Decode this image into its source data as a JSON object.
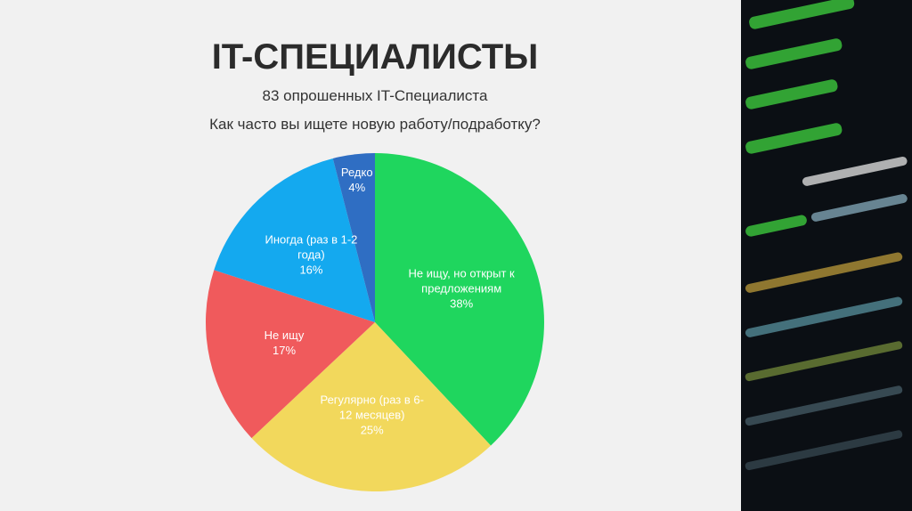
{
  "chart_data": {
    "type": "pie",
    "title": "IT-СПЕЦИАЛИСТЫ",
    "subtitle": "83 опрошенных IT-Специалиста",
    "question": "Как часто вы ищете новую работу/подработку?",
    "categories": [
      "Не ищу, но открыт к предложениям",
      "Регулярно (раз в 6-12 месяцев)",
      "Не ищу",
      "Иногда (раз в 1-2 года)",
      "Редко"
    ],
    "values": [
      38,
      25,
      17,
      16,
      4
    ],
    "value_labels": [
      "38%",
      "25%",
      "17%",
      "16%",
      "4%"
    ],
    "colors": [
      "#1fd65e",
      "#f2d85c",
      "#f05a5c",
      "#14a9ef",
      "#2f6ec3"
    ]
  }
}
